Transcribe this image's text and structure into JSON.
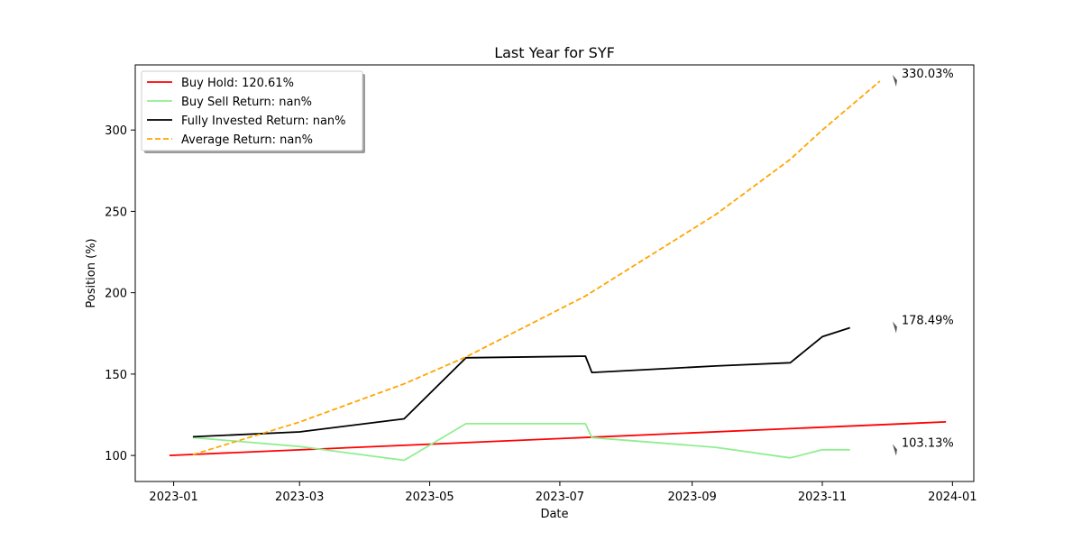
{
  "chart_data": {
    "type": "line",
    "title": "Last Year for SYF",
    "xlabel": "Date",
    "ylabel": "Position (%)",
    "xlim": [
      "2022-12-14",
      "2024-01-11"
    ],
    "ylim": [
      84,
      340
    ],
    "x_ticks": [
      "2023-01-01",
      "2023-03-01",
      "2023-05-01",
      "2023-07-01",
      "2023-09-01",
      "2023-11-01",
      "2024-01-01"
    ],
    "x_tick_labels": [
      "2023-01",
      "2023-03",
      "2023-05",
      "2023-07",
      "2023-09",
      "2023-11",
      "2024-01"
    ],
    "y_ticks": [
      100,
      150,
      200,
      250,
      300
    ],
    "grid": false,
    "legend": "top-left",
    "series": [
      {
        "name": "Buy Hold: 120.61%",
        "color": "#ff0000",
        "style": "solid",
        "points": [
          [
            "2022-12-30",
            100
          ],
          [
            "2023-12-29",
            120.61
          ]
        ]
      },
      {
        "name": "Buy Sell Return: nan%",
        "color": "#90ee90",
        "style": "solid",
        "points": [
          [
            "2023-01-10",
            111
          ],
          [
            "2023-03-01",
            105.5
          ],
          [
            "2023-04-19",
            97
          ],
          [
            "2023-05-18",
            119.5
          ],
          [
            "2023-07-13",
            119.5
          ],
          [
            "2023-07-16",
            111
          ],
          [
            "2023-09-12",
            105
          ],
          [
            "2023-10-17",
            98.5
          ],
          [
            "2023-11-01",
            103.5
          ],
          [
            "2023-11-14",
            103.5
          ]
        ]
      },
      {
        "name": "Fully Invested Return: nan%",
        "color": "#000000",
        "style": "solid",
        "points": [
          [
            "2023-01-10",
            111.5
          ],
          [
            "2023-03-01",
            114.5
          ],
          [
            "2023-04-19",
            122.5
          ],
          [
            "2023-05-18",
            160
          ],
          [
            "2023-07-13",
            161
          ],
          [
            "2023-07-16",
            151
          ],
          [
            "2023-09-12",
            155
          ],
          [
            "2023-10-17",
            157
          ],
          [
            "2023-11-01",
            173
          ],
          [
            "2023-11-14",
            178.5
          ]
        ]
      },
      {
        "name": "Average Return: nan%",
        "color": "#ffa500",
        "style": "dashed",
        "points": [
          [
            "2023-01-10",
            100.5
          ],
          [
            "2023-03-01",
            120.5
          ],
          [
            "2023-04-19",
            144
          ],
          [
            "2023-05-18",
            160.5
          ],
          [
            "2023-07-13",
            198
          ],
          [
            "2023-09-12",
            248
          ],
          [
            "2023-10-17",
            282
          ],
          [
            "2023-11-01",
            300
          ],
          [
            "2023-11-28",
            330
          ]
        ]
      }
    ],
    "annotations": [
      {
        "text": "330.03%",
        "x": "2023-11-28",
        "y": 330.03
      },
      {
        "text": "178.49%",
        "x": "2023-11-28",
        "y": 178.49
      },
      {
        "text": "103.13%",
        "x": "2023-11-28",
        "y": 103.13
      }
    ]
  }
}
